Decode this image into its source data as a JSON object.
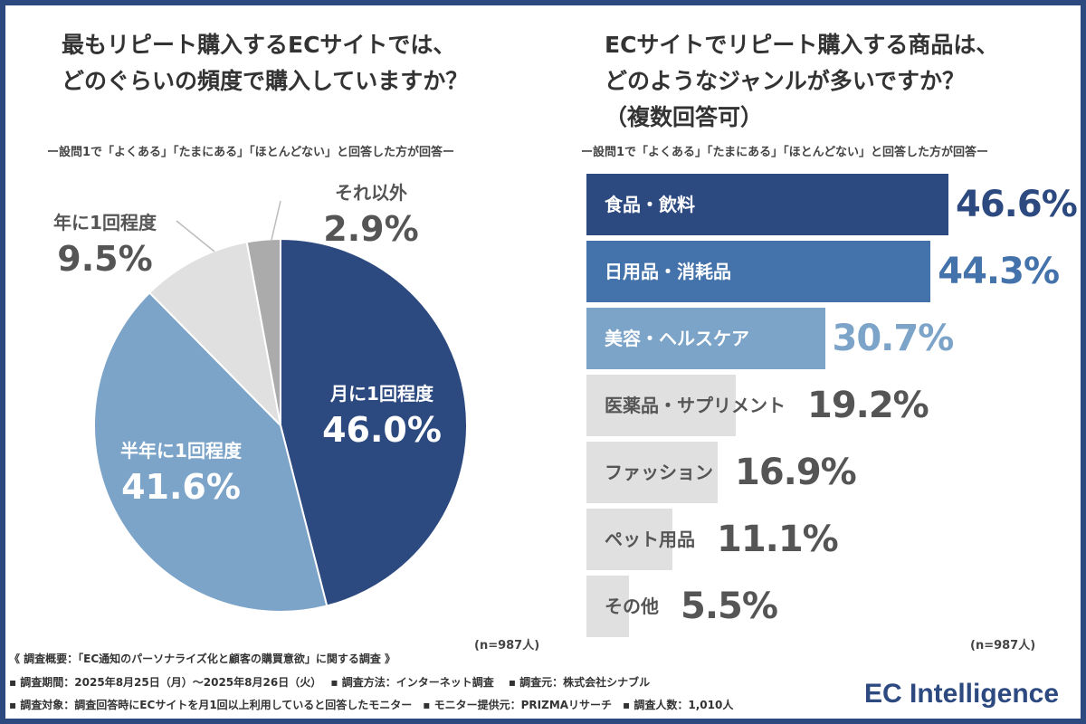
{
  "left": {
    "title_line1": "最もリピート購入するECサイトでは、",
    "title_line2": "どのぐらいの頻度で購入していますか？",
    "subtitle": "ー設問1で「よくある」「たまにある」「ほとんどない」と回答した方が回答ー",
    "n": "(n=987人)"
  },
  "right": {
    "title_line1": "ECサイトでリピート購入する商品は、",
    "title_line2": "どのようなジャンルが多いですか？",
    "title_line3": "（複数回答可）",
    "subtitle": "ー設問1で「よくある」「たまにある」「ほとんどない」と回答した方が回答ー",
    "n": "(n=987人)"
  },
  "chart_data": [
    {
      "type": "pie",
      "title": "最もリピート購入するECサイトでは、どのぐらいの頻度で購入していますか？",
      "labels": [
        "月に1回程度",
        "半年に1回程度",
        "年に1回程度",
        "それ以外"
      ],
      "values": [
        46.0,
        41.6,
        9.5,
        2.9
      ],
      "value_labels": [
        "46.0%",
        "41.6%",
        "9.5%",
        "2.9%"
      ],
      "colors": [
        "#2d4a80",
        "#7ca3c8",
        "#e0e0e0",
        "#ababab"
      ]
    },
    {
      "type": "bar",
      "orientation": "horizontal",
      "title": "ECサイトでリピート購入する商品は、どのようなジャンルが多いですか？（複数回答可）",
      "categories": [
        "食品・飲料",
        "日用品・消耗品",
        "美容・ヘルスケア",
        "医薬品・サプリメント",
        "ファッション",
        "ペット用品",
        "その他"
      ],
      "values": [
        46.6,
        44.3,
        30.7,
        19.2,
        16.9,
        11.1,
        5.5
      ],
      "value_labels": [
        "46.6%",
        "44.3%",
        "30.7%",
        "19.2%",
        "16.9%",
        "11.1%",
        "5.5%"
      ],
      "colors": [
        "#2d4a80",
        "#4472ab",
        "#7ca3c8",
        "#e0e0e0",
        "#e0e0e0",
        "#e0e0e0",
        "#e0e0e0"
      ],
      "value_colors": [
        "#2d4a80",
        "#4472ab",
        "#7ca3c8",
        "#555555",
        "#555555",
        "#555555",
        "#555555"
      ],
      "label_colors": [
        "#ffffff",
        "#ffffff",
        "#ffffff",
        "#555555",
        "#555555",
        "#555555",
        "#555555"
      ]
    }
  ],
  "footer": {
    "line1": "《 調査概要：「EC通知のパーソナライズ化と顧客の購買意欲」に関する調査 》",
    "line2": "▪ 調査期間：2025年8月25日（月）～2025年8月26日（火）　 ▪ 調査方法：インターネット調査　 ▪ 調査元：株式会社シナブル",
    "line3": "▪ 調査対象：調査回答時にECサイトを月1回以上利用していると回答したモニター　▪ モニター提供元：PRIZMAリサーチ　▪ 調査人数：1,010人"
  },
  "logo": "EC Intelligence"
}
